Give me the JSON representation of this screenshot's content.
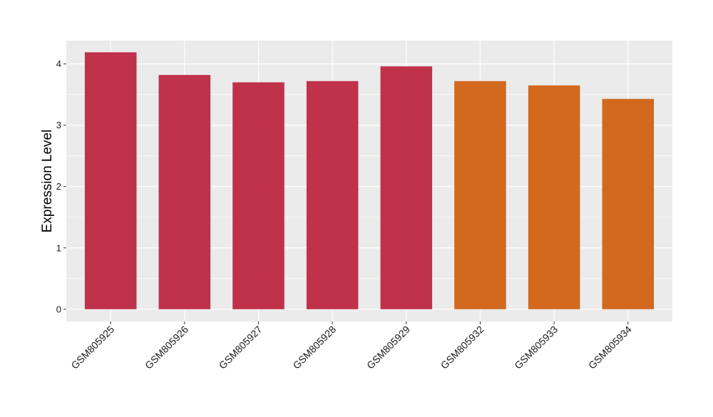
{
  "chart_data": {
    "type": "bar",
    "title": "",
    "xlabel": "",
    "ylabel": "Expression Level",
    "ylim": [
      -0.2,
      4.38
    ],
    "yticks": [
      0,
      1,
      2,
      3,
      4
    ],
    "grid": true,
    "legend": "none",
    "panel_background": "#ebebeb",
    "grid_color": "#ffffff",
    "categories": [
      "GSM805925",
      "GSM805926",
      "GSM805927",
      "GSM805928",
      "GSM805929",
      "GSM805932",
      "GSM805933",
      "GSM805934"
    ],
    "values": [
      4.19,
      3.82,
      3.7,
      3.72,
      3.96,
      3.72,
      3.65,
      3.43
    ],
    "bar_colors": [
      "#c0314a",
      "#c0314a",
      "#c0314a",
      "#c0314a",
      "#c0314a",
      "#d2691e",
      "#d2691e",
      "#d2691e"
    ]
  }
}
